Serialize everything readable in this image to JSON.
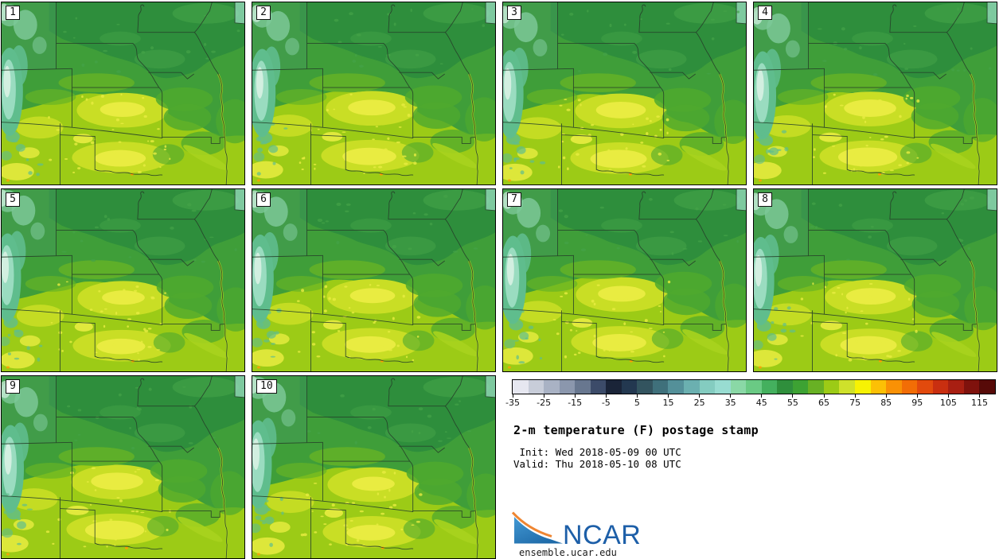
{
  "figure": {
    "title": "2-m temperature (F) postage stamp",
    "init_line": " Init: Wed 2018-05-09 00 UTC",
    "valid_line": "Valid: Thu 2018-05-10 08 UTC"
  },
  "panels": [
    {
      "label": "1"
    },
    {
      "label": "2"
    },
    {
      "label": "3"
    },
    {
      "label": "4"
    },
    {
      "label": "5"
    },
    {
      "label": "6"
    },
    {
      "label": "7"
    },
    {
      "label": "8"
    },
    {
      "label": "9"
    },
    {
      "label": "10"
    }
  ],
  "colorbar": {
    "unit": "F",
    "tick_labels": [
      "-35",
      "-25",
      "-15",
      "-5",
      "5",
      "15",
      "25",
      "35",
      "45",
      "55",
      "65",
      "75",
      "85",
      "95",
      "105",
      "115"
    ],
    "segment_colors": [
      "#e6e7f0",
      "#c8cdd9",
      "#a9b2c4",
      "#8b97ad",
      "#68778f",
      "#3c4b69",
      "#1a2438",
      "#233850",
      "#33545f",
      "#3f707b",
      "#549099",
      "#6bb0b0",
      "#84ccc0",
      "#98dcd1",
      "#8ad8a6",
      "#6aca84",
      "#44b05e",
      "#2f8f3c",
      "#3da233",
      "#68b124",
      "#9ccb16",
      "#cfe12b",
      "#f7f203",
      "#fcc005",
      "#f99105",
      "#f26d06",
      "#e24a0d",
      "#c92f10",
      "#a81f12",
      "#7f120d",
      "#570a08"
    ]
  },
  "branding": {
    "logo_text": "NCAR",
    "site": "ensemble.ucar.edu",
    "logo_blue": "#2478b9",
    "logo_blue_light": "#4399d4",
    "logo_text_blue": "#1d5fa8",
    "logo_orange": "#ef8632"
  },
  "map_palette": {
    "base": "#3f9e39",
    "north": "#2e8e3c",
    "north_light": "#45a347",
    "warm": "#9ccb16",
    "warm_pale": "#c9de25",
    "hot": "#e9ec41",
    "mottle": "#4fa92e",
    "nebraska": "#67b325",
    "wyoming": "#449a58",
    "teal": "#5fbd8d",
    "mint": "#9adcc0",
    "pale_core": "#d2efe0",
    "wy_mint": "#7cc897",
    "river_valley": "#a9d31e",
    "hot_spot": "#f9a005",
    "border": "#26402a"
  }
}
